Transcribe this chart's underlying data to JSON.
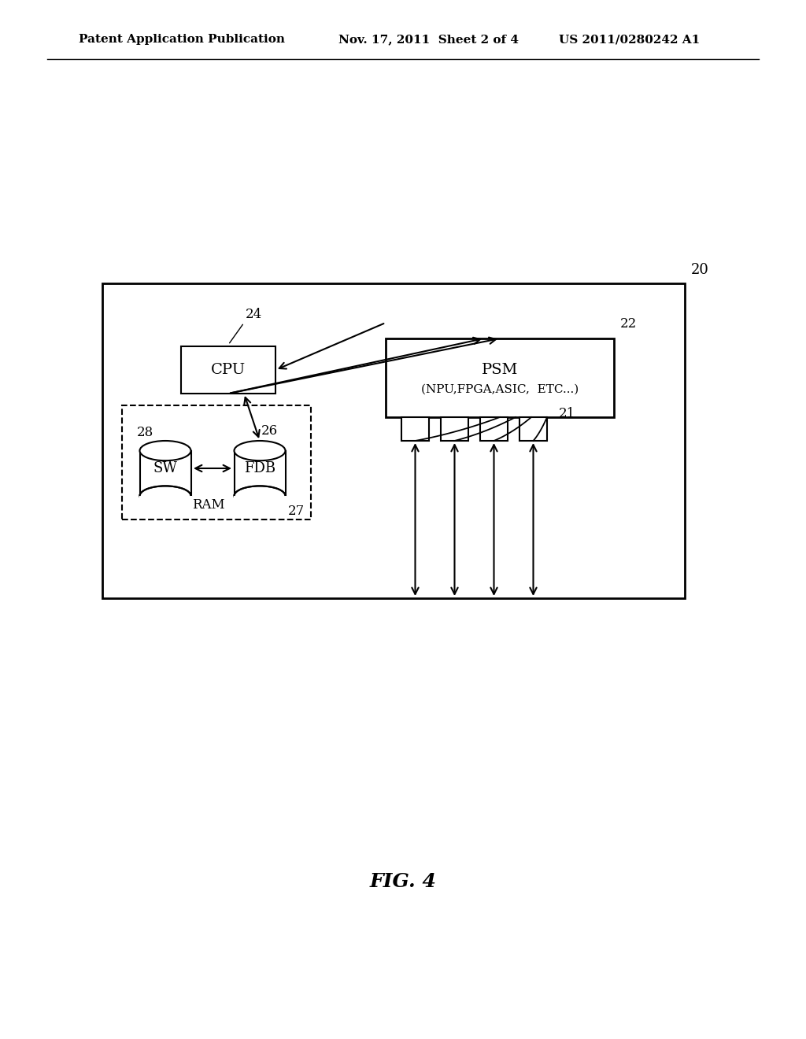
{
  "bg_color": "#ffffff",
  "line_color": "#000000",
  "header_left": "Patent Application Publication",
  "header_center": "Nov. 17, 2011  Sheet 2 of 4",
  "header_right": "US 2011/0280242 A1",
  "fig_label": "FIG. 4",
  "label_20": "20",
  "label_21": "21",
  "label_22": "22",
  "label_24": "24",
  "label_26": "26",
  "label_27": "27",
  "label_28": "28",
  "box_cpu_text": "CPU",
  "box_psm_text": "PSM\n(NPU,FPGA,ASIC,  ETC...)",
  "box_sw_text": "SW",
  "box_fdb_text": "FDB",
  "label_ram": "RAM"
}
